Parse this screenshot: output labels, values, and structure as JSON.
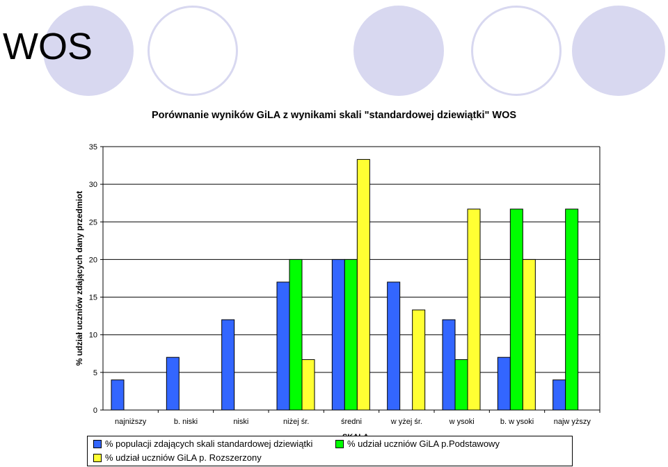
{
  "slide": {
    "title": "WOS"
  },
  "decor": {
    "fill_color": "#d8d8f0",
    "ring_color": "#d8d8f0"
  },
  "chart_data": {
    "type": "bar",
    "title": "Porównanie wyników GiLA z wynikami skali \"standardowej dziewiątki\" WOS",
    "ylabel": "% udział uczniów zdających dany przedmiot",
    "xlabel": "SKALA",
    "ylim": [
      0,
      35
    ],
    "yticks": [
      0,
      5,
      10,
      15,
      20,
      25,
      30,
      35
    ],
    "grid": true,
    "legend_position": "bottom",
    "categories": [
      "najniższy",
      "b. niski",
      "niski",
      "niżej śr.",
      "średni",
      "w yżej śr.",
      "w ysoki",
      "b. w ysoki",
      "najw yższy"
    ],
    "series": [
      {
        "name": "% populacji zdających skali standardowej dziewiątki",
        "color": "#3366ff",
        "values": [
          4,
          7,
          12,
          17,
          20,
          17,
          12,
          7,
          4
        ]
      },
      {
        "name": "% udział uczniów GiLA p.Podstawowy",
        "color": "#00ff00",
        "values": [
          0,
          0,
          0,
          20,
          20,
          0,
          6.7,
          26.7,
          26.7
        ]
      },
      {
        "name": "% udział uczniów GiLA p. Rozszerzony",
        "color": "#ffff33",
        "values": [
          0,
          0,
          0,
          6.7,
          33.3,
          13.3,
          26.7,
          20,
          0
        ]
      }
    ]
  }
}
